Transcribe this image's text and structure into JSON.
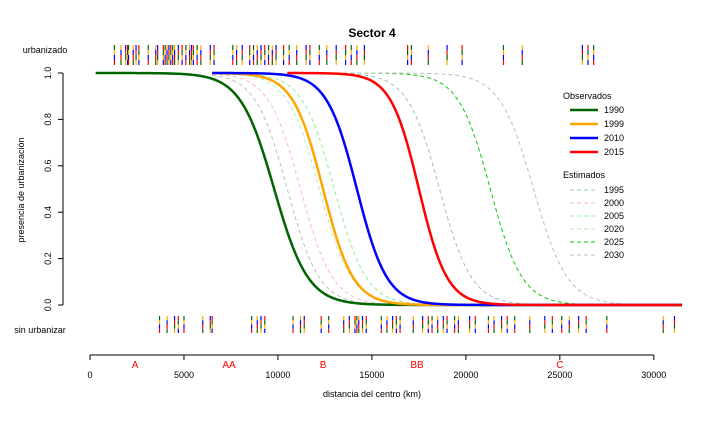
{
  "chart_data": {
    "type": "line",
    "title": "Sector 4",
    "xlabel": "distancia del centro (km)",
    "ylabel": "presencia de urbanización",
    "xlim": [
      0,
      31500
    ],
    "ylim": [
      0,
      1
    ],
    "x_ticks": [
      0,
      5000,
      10000,
      15000,
      20000,
      25000,
      30000
    ],
    "y_ticks": [
      "0.0",
      "0.2",
      "0.4",
      "0.6",
      "0.8",
      "1.0"
    ],
    "rug_labels": {
      "top": "urbanizado",
      "bottom": "sin urbanizar"
    },
    "zone_labels": [
      {
        "label": "A",
        "x": 2400
      },
      {
        "label": "AA",
        "x": 7400
      },
      {
        "label": "B",
        "x": 12400
      },
      {
        "label": "BB",
        "x": 17400
      },
      {
        "label": "C",
        "x": 25000
      }
    ],
    "legend_observed": {
      "title": "Observados",
      "series": [
        {
          "name": "1990",
          "color": "#006400",
          "midpoint": 9800,
          "scale": 900,
          "start": 300
        },
        {
          "name": "1999",
          "color": "#FFA500",
          "midpoint": 12400,
          "scale": 800,
          "start": 6500
        },
        {
          "name": "2010",
          "color": "#0000FF",
          "midpoint": 14200,
          "scale": 800,
          "start": 6500
        },
        {
          "name": "2015",
          "color": "#FF0000",
          "midpoint": 17500,
          "scale": 750,
          "start": 10500
        }
      ]
    },
    "legend_estimated": {
      "title": "Estimados",
      "series": [
        {
          "name": "1995",
          "color": "#9AC0CD",
          "midpoint": 18600,
          "scale": 850,
          "start": 10500
        },
        {
          "name": "2000",
          "color": "#FFB6C1",
          "midpoint": 11200,
          "scale": 850,
          "start": 6500
        },
        {
          "name": "2005",
          "color": "#90EE90",
          "midpoint": 13000,
          "scale": 850,
          "start": 6500
        },
        {
          "name": "2020",
          "color": "#B4EEB4",
          "midpoint": 12200,
          "scale": 850,
          "start": 6500
        },
        {
          "name": "2025",
          "color": "#00CD00",
          "midpoint": 21300,
          "scale": 850,
          "start": 10500
        },
        {
          "name": "2030",
          "color": "#BEBEBE",
          "midpoint": 23600,
          "scale": 900,
          "start": 10500
        }
      ],
      "extra_gray_curve": {
        "color": "#BEBEBE",
        "midpoint": 10500,
        "scale": 850,
        "start": 6500
      }
    },
    "rug_top_x": [
      1300,
      1650,
      1900,
      2000,
      2050,
      2300,
      2450,
      2600,
      3100,
      3500,
      3600,
      3900,
      4000,
      4100,
      4200,
      4300,
      4400,
      4500,
      4700,
      4900,
      5100,
      5300,
      5400,
      5500,
      5700,
      5900,
      6400,
      6600,
      7600,
      7800,
      8100,
      8500,
      8700,
      8900,
      9100,
      9300,
      9500,
      9700,
      9900,
      10300,
      10600,
      11000,
      11500,
      11700,
      12200,
      12600,
      13100,
      13600,
      13900,
      14200,
      14600,
      16900,
      17100,
      18000,
      19000,
      19800,
      22000,
      23000,
      26200,
      26500,
      26800
    ],
    "rug_bottom_x": [
      3700,
      4100,
      4500,
      4700,
      5000,
      6000,
      6400,
      6500,
      8600,
      8900,
      9100,
      9300,
      10800,
      11200,
      11400,
      12300,
      12700,
      13500,
      13800,
      14100,
      14200,
      14300,
      14500,
      14700,
      15500,
      15800,
      16100,
      16300,
      16500,
      17200,
      17700,
      18000,
      18200,
      18500,
      18800,
      19000,
      19400,
      19600,
      20200,
      20500,
      21200,
      21500,
      21900,
      22200,
      22600,
      23400,
      24200,
      24600,
      25100,
      25500,
      26000,
      26400,
      27500,
      30500,
      31100
    ]
  }
}
